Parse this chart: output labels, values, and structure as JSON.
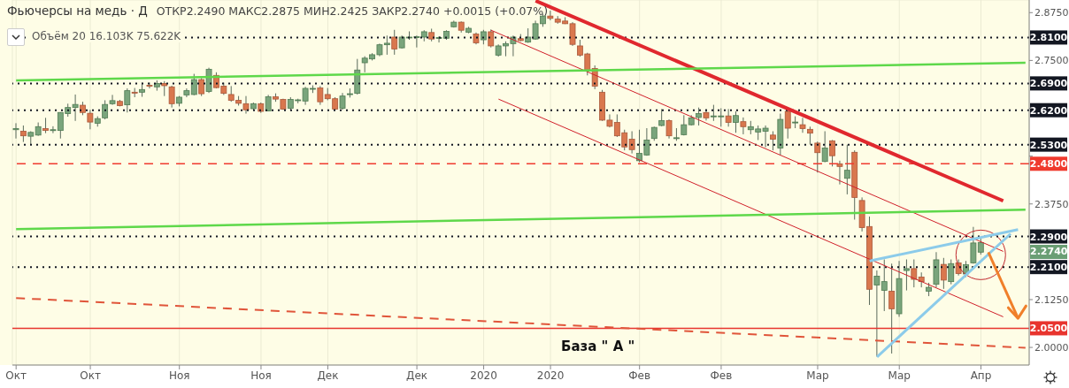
{
  "chart_data": {
    "type": "candlestick",
    "title": "Фьючерсы на медь · Д",
    "subtitle": "ОТКР2.2490 МАКС2.2875 МИН2.2425 ЗАКР2.2740 +0.0015 (+0.07%)",
    "annotations": [
      "Объём 20 16.103K 75.622K",
      "База \" А \"",
      "2.2740"
    ],
    "categories": [
      "Окт",
      null,
      null,
      null,
      null,
      null,
      null,
      null,
      null,
      null,
      "Окт",
      null,
      null,
      null,
      null,
      null,
      null,
      null,
      null,
      null,
      null,
      null,
      "Ноя",
      null,
      null,
      null,
      null,
      null,
      null,
      null,
      null,
      null,
      null,
      "Ноя",
      null,
      null,
      null,
      null,
      null,
      null,
      null,
      null,
      "Дек",
      null,
      null,
      null,
      null,
      null,
      null,
      null,
      null,
      null,
      null,
      null,
      "Дек",
      null,
      null,
      null,
      null,
      null,
      null,
      null,
      null,
      "2020",
      null,
      null,
      null,
      null,
      null,
      null,
      null,
      null,
      "2020",
      null,
      null,
      null,
      null,
      null,
      null,
      null,
      null,
      null,
      null,
      null,
      "Фев",
      null,
      null,
      null,
      null,
      null,
      null,
      null,
      null,
      null,
      null,
      "Фев",
      null,
      null,
      null,
      null,
      null,
      null,
      null,
      null,
      null,
      null,
      null,
      null,
      "Мар",
      null,
      null,
      null,
      null,
      null,
      null,
      null,
      null,
      null,
      null,
      "Мар",
      null,
      null,
      null,
      null,
      null,
      null,
      null,
      null,
      null,
      null,
      "Апр",
      null,
      null,
      null,
      null,
      null,
      null
    ],
    "ohlc": [
      [
        2.569,
        2.586,
        2.546,
        2.572
      ],
      [
        2.565,
        2.58,
        2.537,
        2.553
      ],
      [
        2.552,
        2.565,
        2.53,
        2.562
      ],
      [
        2.555,
        2.588,
        2.553,
        2.577
      ],
      [
        2.572,
        2.6,
        2.56,
        2.567
      ],
      [
        2.568,
        2.578,
        2.56,
        2.569
      ],
      [
        2.567,
        2.615,
        2.546,
        2.614
      ],
      [
        2.611,
        2.637,
        2.603,
        2.627
      ],
      [
        2.627,
        2.661,
        2.592,
        2.635
      ],
      [
        2.633,
        2.642,
        2.607,
        2.614
      ],
      [
        2.612,
        2.621,
        2.57,
        2.589
      ],
      [
        2.586,
        2.604,
        2.577,
        2.598
      ],
      [
        2.6,
        2.646,
        2.596,
        2.635
      ],
      [
        2.637,
        2.66,
        2.634,
        2.645
      ],
      [
        2.643,
        2.647,
        2.63,
        2.632
      ],
      [
        2.634,
        2.677,
        2.614,
        2.671
      ],
      [
        2.667,
        2.678,
        2.654,
        2.665
      ],
      [
        2.667,
        2.692,
        2.655,
        2.674
      ],
      [
        2.685,
        2.692,
        2.677,
        2.683
      ],
      [
        2.681,
        2.698,
        2.671,
        2.69
      ],
      [
        2.69,
        2.696,
        2.657,
        2.684
      ],
      [
        2.681,
        2.684,
        2.627,
        2.637
      ],
      [
        2.638,
        2.657,
        2.63,
        2.654
      ],
      [
        2.66,
        2.677,
        2.654,
        2.671
      ],
      [
        2.661,
        2.715,
        2.659,
        2.7
      ],
      [
        2.7,
        2.704,
        2.657,
        2.663
      ],
      [
        2.669,
        2.731,
        2.665,
        2.727
      ],
      [
        2.711,
        2.719,
        2.677,
        2.679
      ],
      [
        2.683,
        2.692,
        2.66,
        2.664
      ],
      [
        2.661,
        2.683,
        2.642,
        2.646
      ],
      [
        2.646,
        2.657,
        2.632,
        2.638
      ],
      [
        2.637,
        2.657,
        2.611,
        2.621
      ],
      [
        2.624,
        2.64,
        2.621,
        2.637
      ],
      [
        2.637,
        2.64,
        2.613,
        2.617
      ],
      [
        2.618,
        2.66,
        2.617,
        2.655
      ],
      [
        2.655,
        2.664,
        2.642,
        2.649
      ],
      [
        2.648,
        2.65,
        2.621,
        2.623
      ],
      [
        2.625,
        2.654,
        2.619,
        2.648
      ],
      [
        2.646,
        2.65,
        2.638,
        2.647
      ],
      [
        2.644,
        2.681,
        2.634,
        2.677
      ],
      [
        2.676,
        2.685,
        2.665,
        2.677
      ],
      [
        2.678,
        2.683,
        2.634,
        2.642
      ],
      [
        2.661,
        2.678,
        2.646,
        2.65
      ],
      [
        2.65,
        2.654,
        2.619,
        2.623
      ],
      [
        2.625,
        2.665,
        2.621,
        2.657
      ],
      [
        2.661,
        2.677,
        2.653,
        2.663
      ],
      [
        2.664,
        2.754,
        2.661,
        2.725
      ],
      [
        2.744,
        2.761,
        2.719,
        2.756
      ],
      [
        2.754,
        2.769,
        2.75,
        2.765
      ],
      [
        2.765,
        2.794,
        2.761,
        2.791
      ],
      [
        2.791,
        2.815,
        2.765,
        2.795
      ],
      [
        2.811,
        2.83,
        2.765,
        2.78
      ],
      [
        2.783,
        2.815,
        2.781,
        2.811
      ],
      [
        2.809,
        2.826,
        2.804,
        2.811
      ],
      [
        2.811,
        2.815,
        2.784,
        2.812
      ],
      [
        2.811,
        2.829,
        2.8,
        2.825
      ],
      [
        2.823,
        2.833,
        2.8,
        2.806
      ],
      [
        2.808,
        2.813,
        2.797,
        2.81
      ],
      [
        2.808,
        2.829,
        2.804,
        2.826
      ],
      [
        2.838,
        2.854,
        2.836,
        2.85
      ],
      [
        2.85,
        2.852,
        2.823,
        2.829
      ],
      [
        2.824,
        2.838,
        2.821,
        2.834
      ],
      [
        2.819,
        2.823,
        2.792,
        2.796
      ],
      [
        2.804,
        2.83,
        2.792,
        2.825
      ],
      [
        2.825,
        2.831,
        2.784,
        2.788
      ],
      [
        2.764,
        2.792,
        2.76,
        2.788
      ],
      [
        2.788,
        2.8,
        2.761,
        2.794
      ],
      [
        2.794,
        2.815,
        2.761,
        2.811
      ],
      [
        2.807,
        2.819,
        2.8,
        2.802
      ],
      [
        2.798,
        2.834,
        2.796,
        2.811
      ],
      [
        2.806,
        2.854,
        2.804,
        2.846
      ],
      [
        2.846,
        2.872,
        2.838,
        2.866
      ],
      [
        2.866,
        2.88,
        2.855,
        2.86
      ],
      [
        2.858,
        2.866,
        2.846,
        2.85
      ],
      [
        2.853,
        2.863,
        2.845,
        2.846
      ],
      [
        2.846,
        2.85,
        2.788,
        2.792
      ],
      [
        2.788,
        2.804,
        2.76,
        2.764
      ],
      [
        2.767,
        2.77,
        2.711,
        2.723
      ],
      [
        2.729,
        2.737,
        2.675,
        2.683
      ],
      [
        2.667,
        2.673,
        2.592,
        2.594
      ],
      [
        2.594,
        2.609,
        2.575,
        2.578
      ],
      [
        2.588,
        2.609,
        2.55,
        2.553
      ],
      [
        2.561,
        2.569,
        2.515,
        2.524
      ],
      [
        2.544,
        2.565,
        2.507,
        2.517
      ],
      [
        2.488,
        2.569,
        2.484,
        2.507
      ],
      [
        2.503,
        2.573,
        2.501,
        2.542
      ],
      [
        2.546,
        2.577,
        2.54,
        2.575
      ],
      [
        2.58,
        2.623,
        2.578,
        2.593
      ],
      [
        2.593,
        2.596,
        2.546,
        2.553
      ],
      [
        2.548,
        2.573,
        2.54,
        2.548
      ],
      [
        2.556,
        2.607,
        2.554,
        2.582
      ],
      [
        2.582,
        2.607,
        2.58,
        2.6
      ],
      [
        2.601,
        2.627,
        2.58,
        2.611
      ],
      [
        2.614,
        2.623,
        2.593,
        2.6
      ],
      [
        2.605,
        2.634,
        2.592,
        2.605
      ],
      [
        2.605,
        2.625,
        2.577,
        2.605
      ],
      [
        2.605,
        2.623,
        2.577,
        2.588
      ],
      [
        2.588,
        2.617,
        2.561,
        2.606
      ],
      [
        2.59,
        2.601,
        2.557,
        2.577
      ],
      [
        2.569,
        2.592,
        2.557,
        2.577
      ],
      [
        2.563,
        2.58,
        2.542,
        2.571
      ],
      [
        2.565,
        2.58,
        2.523,
        2.573
      ],
      [
        2.555,
        2.565,
        2.515,
        2.544
      ],
      [
        2.521,
        2.611,
        2.503,
        2.596
      ],
      [
        2.617,
        2.624,
        2.546,
        2.573
      ],
      [
        2.588,
        2.604,
        2.573,
        2.589
      ],
      [
        2.582,
        2.6,
        2.561,
        2.572
      ],
      [
        2.57,
        2.577,
        2.53,
        2.56
      ],
      [
        2.534,
        2.538,
        2.457,
        2.509
      ],
      [
        2.486,
        2.565,
        2.484,
        2.521
      ],
      [
        2.54,
        2.542,
        2.473,
        2.501
      ],
      [
        2.48,
        2.488,
        2.426,
        2.473
      ],
      [
        2.442,
        2.53,
        2.4,
        2.463
      ],
      [
        2.51,
        2.515,
        2.334,
        2.392
      ],
      [
        2.384,
        2.392,
        2.303,
        2.313
      ],
      [
        2.316,
        2.342,
        2.111,
        2.152
      ],
      [
        2.163,
        2.201,
        1.976,
        2.186
      ],
      [
        2.149,
        2.23,
        2.095,
        2.172
      ],
      [
        2.147,
        2.219,
        1.984,
        2.101
      ],
      [
        2.088,
        2.226,
        2.08,
        2.18
      ],
      [
        2.201,
        2.23,
        2.149,
        2.206
      ],
      [
        2.206,
        2.23,
        2.157,
        2.178
      ],
      [
        2.184,
        2.196,
        2.157,
        2.172
      ],
      [
        2.147,
        2.169,
        2.134,
        2.157
      ],
      [
        2.165,
        2.249,
        2.157,
        2.229
      ],
      [
        2.217,
        2.234,
        2.153,
        2.176
      ],
      [
        2.172,
        2.23,
        2.165,
        2.219
      ],
      [
        2.221,
        2.23,
        2.188,
        2.193
      ],
      [
        2.192,
        2.226,
        2.184,
        2.216
      ],
      [
        2.221,
        2.315,
        2.219,
        2.273
      ],
      [
        2.249,
        2.2875,
        2.2425,
        2.274
      ],
      null,
      null,
      null,
      null,
      null,
      null
    ],
    "series": [
      {
        "type": "line",
        "color": "#e0282e",
        "line_style": "solid",
        "values": [
          null,
          null,
          null,
          null,
          null,
          null,
          null,
          null,
          null,
          null,
          null,
          null,
          null,
          null,
          null,
          null,
          null,
          null,
          null,
          null,
          null,
          null,
          null,
          null,
          null,
          null,
          null,
          null,
          null,
          null,
          null,
          null,
          null,
          null,
          null,
          null,
          null,
          null,
          null,
          null,
          null,
          null,
          null,
          null,
          null,
          null,
          null,
          null,
          null,
          null,
          null,
          null,
          null,
          null,
          null,
          null,
          null,
          null,
          null,
          null,
          null,
          null,
          null,
          null,
          null,
          null,
          null,
          null,
          null,
          null,
          2.906,
          null,
          null,
          null,
          null,
          null,
          null,
          null,
          null,
          null,
          null,
          null,
          null,
          null,
          null,
          null,
          null,
          null,
          null,
          null,
          null,
          null,
          null,
          null,
          null,
          null,
          null,
          null,
          null,
          null,
          null,
          null,
          null,
          null,
          null,
          null,
          null,
          null,
          null,
          null,
          null,
          null,
          null,
          null,
          null,
          null,
          null,
          null,
          null,
          null,
          null,
          null,
          null,
          null,
          null,
          null,
          null,
          null,
          null,
          null,
          null,
          null,
          null,
          2.383,
          null,
          null,
          null
        ]
      },
      {
        "type": "line",
        "color": "#d0202a",
        "line_style": "solid",
        "values": [
          null,
          null,
          null,
          null,
          null,
          null,
          null,
          null,
          null,
          null,
          null,
          null,
          null,
          null,
          null,
          null,
          null,
          null,
          null,
          null,
          null,
          null,
          null,
          null,
          null,
          null,
          null,
          null,
          null,
          null,
          null,
          null,
          null,
          null,
          null,
          null,
          null,
          null,
          null,
          null,
          null,
          null,
          null,
          null,
          null,
          null,
          null,
          null,
          null,
          null,
          null,
          null,
          null,
          null,
          null,
          null,
          null,
          null,
          null,
          null,
          null,
          null,
          null,
          null,
          2.829,
          null,
          null,
          null,
          null,
          null,
          null,
          null,
          null,
          null,
          null,
          null,
          null,
          null,
          null,
          null,
          null,
          null,
          null,
          null,
          null,
          null,
          null,
          null,
          null,
          null,
          null,
          null,
          null,
          null,
          null,
          null,
          null,
          null,
          null,
          null,
          null,
          null,
          null,
          null,
          null,
          null,
          null,
          null,
          null,
          null,
          null,
          null,
          null,
          null,
          null,
          null,
          null,
          null,
          null,
          null,
          null,
          null,
          null,
          null,
          null,
          null,
          null,
          null,
          null,
          null,
          null,
          null,
          null,
          2.251,
          null,
          null,
          null
        ]
      },
      {
        "type": "line",
        "color": "#d0202a",
        "line_style": "solid",
        "values": [
          null,
          null,
          null,
          null,
          null,
          null,
          null,
          null,
          null,
          null,
          null,
          null,
          null,
          null,
          null,
          null,
          null,
          null,
          null,
          null,
          null,
          null,
          null,
          null,
          null,
          null,
          null,
          null,
          null,
          null,
          null,
          null,
          null,
          null,
          null,
          null,
          null,
          null,
          null,
          null,
          null,
          null,
          null,
          null,
          null,
          null,
          null,
          null,
          null,
          null,
          null,
          null,
          null,
          null,
          null,
          null,
          null,
          null,
          null,
          null,
          null,
          null,
          null,
          null,
          null,
          2.649,
          null,
          null,
          null,
          null,
          null,
          null,
          null,
          null,
          null,
          null,
          null,
          null,
          null,
          null,
          null,
          null,
          null,
          null,
          null,
          null,
          null,
          null,
          null,
          null,
          null,
          null,
          null,
          null,
          null,
          null,
          null,
          null,
          null,
          null,
          null,
          null,
          null,
          null,
          null,
          null,
          null,
          null,
          null,
          null,
          null,
          null,
          null,
          null,
          null,
          null,
          null,
          null,
          null,
          null,
          null,
          null,
          null,
          null,
          null,
          null,
          null,
          null,
          null,
          null,
          null,
          null,
          null,
          2.08,
          null,
          null,
          null
        ]
      },
      {
        "type": "line",
        "color": "#5ed84a",
        "line_style": "solid",
        "values": [
          2.698,
          null,
          null,
          null,
          null,
          null,
          null,
          null,
          null,
          null,
          null,
          null,
          null,
          null,
          null,
          null,
          null,
          null,
          null,
          null,
          null,
          null,
          null,
          null,
          null,
          null,
          null,
          null,
          null,
          null,
          null,
          null,
          null,
          null,
          null,
          null,
          null,
          null,
          null,
          null,
          null,
          null,
          null,
          null,
          null,
          null,
          null,
          null,
          null,
          null,
          null,
          null,
          null,
          null,
          null,
          null,
          null,
          null,
          null,
          null,
          null,
          null,
          null,
          null,
          null,
          null,
          null,
          null,
          null,
          null,
          null,
          null,
          null,
          null,
          null,
          null,
          null,
          null,
          null,
          null,
          null,
          null,
          null,
          null,
          null,
          null,
          null,
          null,
          null,
          null,
          null,
          null,
          null,
          null,
          null,
          null,
          null,
          null,
          null,
          null,
          null,
          null,
          null,
          null,
          null,
          null,
          null,
          null,
          null,
          null,
          null,
          null,
          null,
          null,
          null,
          null,
          null,
          null,
          null,
          null,
          null,
          null,
          null,
          null,
          null,
          null,
          null,
          null,
          null,
          null,
          null,
          null,
          null,
          null,
          null,
          null,
          2.744
        ]
      },
      {
        "type": "line",
        "color": "#5ed84a",
        "line_style": "solid",
        "values": [
          2.309,
          null,
          null,
          null,
          null,
          null,
          null,
          null,
          null,
          null,
          null,
          null,
          null,
          null,
          null,
          null,
          null,
          null,
          null,
          null,
          null,
          null,
          null,
          null,
          null,
          null,
          null,
          null,
          null,
          null,
          null,
          null,
          null,
          null,
          null,
          null,
          null,
          null,
          null,
          null,
          null,
          null,
          null,
          null,
          null,
          null,
          null,
          null,
          null,
          null,
          null,
          null,
          null,
          null,
          null,
          null,
          null,
          null,
          null,
          null,
          null,
          null,
          null,
          null,
          null,
          null,
          null,
          null,
          null,
          null,
          null,
          null,
          null,
          null,
          null,
          null,
          null,
          null,
          null,
          null,
          null,
          null,
          null,
          null,
          null,
          null,
          null,
          null,
          null,
          null,
          null,
          null,
          null,
          null,
          null,
          null,
          null,
          null,
          null,
          null,
          null,
          null,
          null,
          null,
          null,
          null,
          null,
          null,
          null,
          null,
          null,
          null,
          null,
          null,
          null,
          null,
          null,
          null,
          null,
          null,
          null,
          null,
          null,
          null,
          null,
          null,
          null,
          null,
          null,
          null,
          null,
          null,
          null,
          null,
          null,
          null,
          2.36
        ]
      },
      {
        "type": "line",
        "color": "#e0553a",
        "line_style": "dashed",
        "values": [
          2.129,
          null,
          null,
          null,
          null,
          null,
          null,
          null,
          null,
          null,
          null,
          null,
          null,
          null,
          null,
          null,
          null,
          null,
          null,
          null,
          null,
          null,
          null,
          null,
          null,
          null,
          null,
          null,
          null,
          null,
          null,
          null,
          null,
          null,
          null,
          null,
          null,
          null,
          null,
          null,
          null,
          null,
          null,
          null,
          null,
          null,
          null,
          null,
          null,
          null,
          null,
          null,
          null,
          null,
          null,
          null,
          null,
          null,
          null,
          null,
          null,
          null,
          null,
          null,
          null,
          null,
          null,
          null,
          null,
          null,
          null,
          null,
          null,
          null,
          null,
          null,
          null,
          null,
          null,
          null,
          null,
          null,
          null,
          null,
          null,
          null,
          null,
          null,
          null,
          null,
          null,
          null,
          null,
          null,
          null,
          null,
          null,
          null,
          null,
          null,
          null,
          null,
          null,
          null,
          null,
          null,
          null,
          null,
          null,
          null,
          null,
          null,
          null,
          null,
          null,
          null,
          null,
          null,
          null,
          null,
          null,
          null,
          null,
          null,
          null,
          null,
          null,
          null,
          null,
          null,
          null,
          null,
          null,
          null,
          null,
          null,
          1.999
        ]
      },
      {
        "type": "line",
        "color": "#8ccbea",
        "line_style": "solid",
        "values": [
          null,
          null,
          null,
          null,
          null,
          null,
          null,
          null,
          null,
          null,
          null,
          null,
          null,
          null,
          null,
          null,
          null,
          null,
          null,
          null,
          null,
          null,
          null,
          null,
          null,
          null,
          null,
          null,
          null,
          null,
          null,
          null,
          null,
          null,
          null,
          null,
          null,
          null,
          null,
          null,
          null,
          null,
          null,
          null,
          null,
          null,
          null,
          null,
          null,
          null,
          null,
          null,
          null,
          null,
          null,
          null,
          null,
          null,
          null,
          null,
          null,
          null,
          null,
          null,
          null,
          null,
          null,
          null,
          null,
          null,
          null,
          null,
          null,
          null,
          null,
          null,
          null,
          null,
          null,
          null,
          null,
          null,
          null,
          null,
          null,
          null,
          null,
          null,
          null,
          null,
          null,
          null,
          null,
          null,
          null,
          null,
          null,
          null,
          null,
          null,
          null,
          null,
          null,
          null,
          null,
          null,
          null,
          null,
          null,
          null,
          null,
          null,
          null,
          null,
          null,
          2.226,
          null,
          null,
          null,
          null,
          null,
          null,
          null,
          null,
          null,
          null,
          null,
          null,
          null,
          null,
          null,
          null,
          null,
          null,
          null,
          2.308,
          null
        ]
      },
      {
        "type": "line",
        "color": "#8ccbea",
        "line_style": "solid",
        "values": [
          null,
          null,
          null,
          null,
          null,
          null,
          null,
          null,
          null,
          null,
          null,
          null,
          null,
          null,
          null,
          null,
          null,
          null,
          null,
          null,
          null,
          null,
          null,
          null,
          null,
          null,
          null,
          null,
          null,
          null,
          null,
          null,
          null,
          null,
          null,
          null,
          null,
          null,
          null,
          null,
          null,
          null,
          null,
          null,
          null,
          null,
          null,
          null,
          null,
          null,
          null,
          null,
          null,
          null,
          null,
          null,
          null,
          null,
          null,
          null,
          null,
          null,
          null,
          null,
          null,
          null,
          null,
          null,
          null,
          null,
          null,
          null,
          null,
          null,
          null,
          null,
          null,
          null,
          null,
          null,
          null,
          null,
          null,
          null,
          null,
          null,
          null,
          null,
          null,
          null,
          null,
          null,
          null,
          null,
          null,
          null,
          null,
          null,
          null,
          null,
          null,
          null,
          null,
          null,
          null,
          null,
          null,
          null,
          null,
          null,
          null,
          null,
          null,
          null,
          null,
          null,
          1.975,
          null,
          null,
          null,
          null,
          null,
          null,
          null,
          null,
          null,
          null,
          null,
          null,
          null,
          null,
          null,
          null,
          null,
          2.297,
          null,
          null
        ]
      },
      {
        "type": "line",
        "color": "#f07f2a",
        "line_style": "solid",
        "values": [
          null,
          null,
          null,
          null,
          null,
          null,
          null,
          null,
          null,
          null,
          null,
          null,
          null,
          null,
          null,
          null,
          null,
          null,
          null,
          null,
          null,
          null,
          null,
          null,
          null,
          null,
          null,
          null,
          null,
          null,
          null,
          null,
          null,
          null,
          null,
          null,
          null,
          null,
          null,
          null,
          null,
          null,
          null,
          null,
          null,
          null,
          null,
          null,
          null,
          null,
          null,
          null,
          null,
          null,
          null,
          null,
          null,
          null,
          null,
          null,
          null,
          null,
          null,
          null,
          null,
          null,
          null,
          null,
          null,
          null,
          null,
          null,
          null,
          null,
          null,
          null,
          null,
          null,
          null,
          null,
          null,
          null,
          null,
          null,
          null,
          null,
          null,
          null,
          null,
          null,
          null,
          null,
          null,
          null,
          null,
          null,
          null,
          null,
          null,
          null,
          null,
          null,
          null,
          null,
          null,
          null,
          null,
          null,
          null,
          null,
          null,
          null,
          null,
          null,
          null,
          null,
          null,
          null,
          null,
          null,
          null,
          null,
          null,
          null,
          null,
          null,
          null,
          null,
          null,
          null,
          null,
          2.249,
          null,
          null,
          null,
          2.076,
          null
        ]
      }
    ],
    "ref_lines": [
      {
        "axis": "y",
        "value": 2.81,
        "label": "2.8100",
        "color": "#131722",
        "line_style": "dotted"
      },
      {
        "axis": "y",
        "value": 2.69,
        "label": "2.6900",
        "color": "#131722",
        "line_style": "dotted"
      },
      {
        "axis": "y",
        "value": 2.62,
        "label": "2.6200",
        "color": "#131722",
        "line_style": "dotted"
      },
      {
        "axis": "y",
        "value": 2.53,
        "label": "2.5300",
        "color": "#131722",
        "line_style": "dotted"
      },
      {
        "axis": "y",
        "value": 2.48,
        "label": "2.4800",
        "color": "#f03a2e",
        "line_style": "dashed"
      },
      {
        "axis": "y",
        "value": 2.29,
        "label": "2.2900",
        "color": "#131722",
        "line_style": "dotted"
      },
      {
        "axis": "y",
        "value": 2.21,
        "label": "2.2100",
        "color": "#131722",
        "line_style": "dotted"
      },
      {
        "axis": "y",
        "value": 2.05,
        "label": "2.0500",
        "color": "#e8342e",
        "line_style": "solid"
      }
    ],
    "ylim": [
      1.954,
      2.908
    ],
    "yticks": [
      {
        "value": 2.0,
        "label": "2.0000"
      },
      {
        "value": 2.125,
        "label": "2.1250"
      },
      {
        "value": 2.25,
        "label": null
      },
      {
        "value": 2.375,
        "label": "2.3750"
      },
      {
        "value": 2.5,
        "label": null
      },
      {
        "value": 2.625,
        "label": null
      },
      {
        "value": 2.75,
        "label": "2.7500"
      },
      {
        "value": 2.875,
        "label": "2.8750"
      }
    ],
    "grid": true,
    "marker": "none"
  }
}
